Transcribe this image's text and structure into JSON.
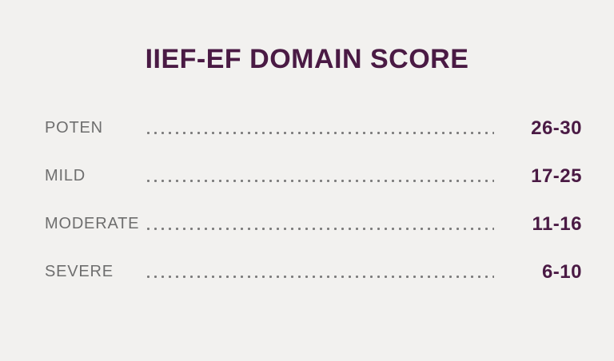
{
  "title": "IIEF-EF DOMAIN SCORE",
  "rows": [
    {
      "label": "POTEN",
      "value": "26-30"
    },
    {
      "label": "MILD",
      "value": "17-25"
    },
    {
      "label": "MODERATE",
      "value": "11-16"
    },
    {
      "label": "SEVERE",
      "value": "6-10"
    }
  ],
  "colors": {
    "background": "#f2f1ef",
    "title": "#4a1a44",
    "value": "#4a1a44",
    "label": "#6e6e6e",
    "dots": "#7c7c7c"
  },
  "chart_data": {
    "type": "table",
    "title": "IIEF-EF DOMAIN SCORE",
    "categories": [
      "POTEN",
      "MILD",
      "MODERATE",
      "SEVERE"
    ],
    "values": [
      "26-30",
      "17-25",
      "11-16",
      "6-10"
    ],
    "ranges": [
      [
        26,
        30
      ],
      [
        17,
        25
      ],
      [
        11,
        16
      ],
      [
        6,
        10
      ]
    ],
    "columns": [
      "severity",
      "score_range"
    ],
    "legend": "none",
    "grid": false
  }
}
